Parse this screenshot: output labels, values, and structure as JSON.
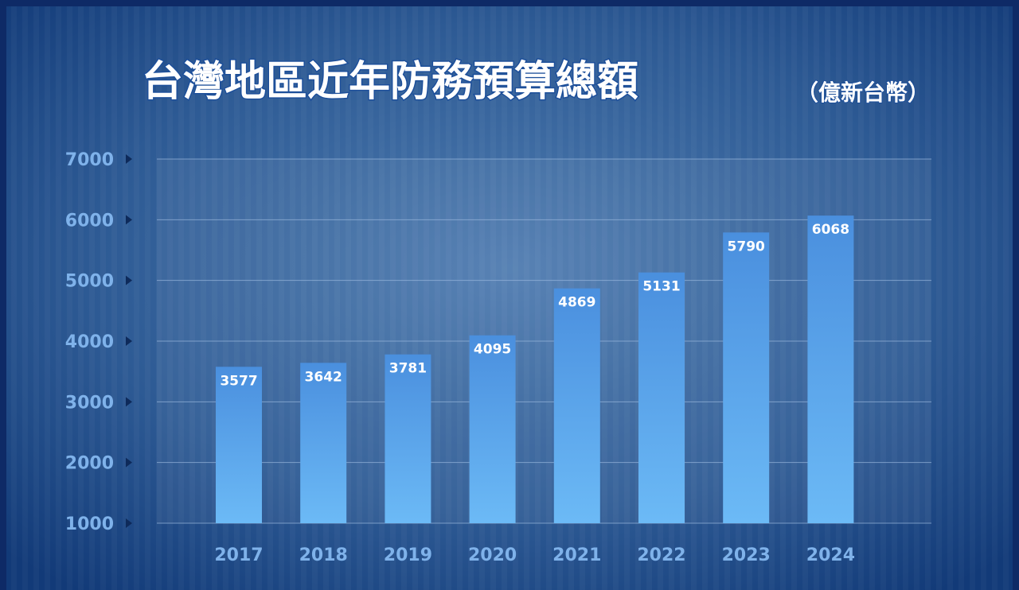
{
  "chart_data": {
    "type": "bar",
    "title": "台灣地區近年防務預算總額",
    "subtitle": "（億新台幣）",
    "categories": [
      "2017",
      "2018",
      "2019",
      "2020",
      "2021",
      "2022",
      "2023",
      "2024"
    ],
    "values": [
      3577,
      3642,
      3781,
      4095,
      4869,
      5131,
      5790,
      6068
    ],
    "color": "#5aa6ec",
    "ylim": [
      1000,
      7000
    ],
    "yticks": [
      1000,
      2000,
      3000,
      4000,
      5000,
      6000,
      7000
    ],
    "grid": true
  }
}
